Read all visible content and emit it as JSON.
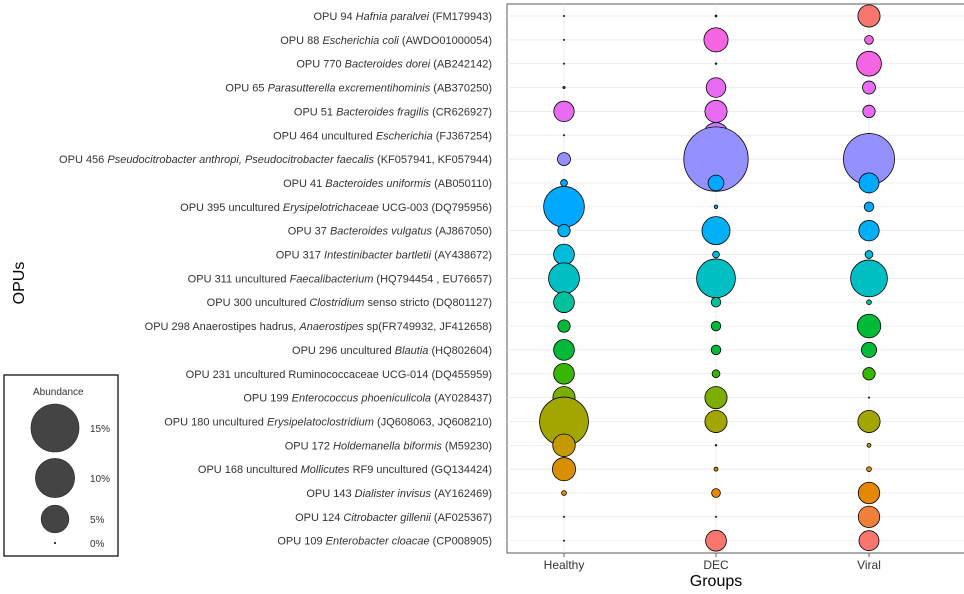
{
  "chart_data": {
    "type": "bubble",
    "xlabel": "Groups",
    "ylabel": "OPUs",
    "groups": [
      "Healthy",
      "DEC",
      "Viral"
    ],
    "legend": {
      "title": "Abundance",
      "entries": [
        {
          "label": "15%",
          "value": 15
        },
        {
          "label": "10%",
          "value": 10
        },
        {
          "label": "5%",
          "value": 5
        },
        {
          "label": "0%",
          "value": 0
        }
      ]
    },
    "rows": [
      {
        "parts": [
          {
            "t": "OPU 94 "
          },
          {
            "t": "Hafnia paralvei",
            "i": true
          },
          {
            "t": " (FM179943)"
          }
        ],
        "color": "#F8766D",
        "values": [
          0.02,
          0.04,
          3.2
        ]
      },
      {
        "parts": [
          {
            "t": "OPU 88 "
          },
          {
            "t": "Escherichia coli",
            "i": true
          },
          {
            "t": " (AWDO01000054)"
          }
        ],
        "color": "#F564E3",
        "values": [
          0.02,
          3.8,
          0.5
        ]
      },
      {
        "parts": [
          {
            "t": "OPU 770 "
          },
          {
            "t": "Bacteroides dorei",
            "i": true
          },
          {
            "t": " (AB242142)"
          }
        ],
        "color": "#F564E3",
        "values": [
          0.02,
          0.03,
          4.0
        ]
      },
      {
        "parts": [
          {
            "t": "OPU 65  "
          },
          {
            "t": "Parasutterella excrementihominis",
            "i": true
          },
          {
            "t": " (AB370250)"
          }
        ],
        "color": "#E76BF3",
        "values": [
          0.05,
          2.5,
          1.1
        ]
      },
      {
        "parts": [
          {
            "t": "OPU 51 "
          },
          {
            "t": "Bacteroides fragilis",
            "i": true
          },
          {
            "t": " (CR626927)"
          }
        ],
        "color": "#E76BF3",
        "values": [
          2.7,
          3.2,
          1.0
        ]
      },
      {
        "parts": [
          {
            "t": "OPU 464 uncultured "
          },
          {
            "t": "Escherichia",
            "i": true
          },
          {
            "t": " (FJ367254)"
          }
        ],
        "color": "#C77CFF",
        "values": [
          0.02,
          4.2,
          0.1
        ]
      },
      {
        "parts": [
          {
            "t": "OPU 456 "
          },
          {
            "t": "Pseudocitrobacter anthropi, Pseudocitrobacter faecalis",
            "i": true
          },
          {
            "t": " (KF057941, KF057944)"
          }
        ],
        "color": "#9590FF",
        "values": [
          1.1,
          27.0,
          17.0
        ]
      },
      {
        "parts": [
          {
            "t": "OPU 41 "
          },
          {
            "t": "Bacteroides uniformis",
            "i": true
          },
          {
            "t": " (AB050110)"
          }
        ],
        "color": "#00A9FF",
        "values": [
          0.3,
          1.6,
          2.6
        ]
      },
      {
        "parts": [
          {
            "t": "OPU 395 uncultured "
          },
          {
            "t": "Erysipelotrichaceae",
            "i": true
          },
          {
            "t": " UCG-003 (DQ795956)"
          }
        ],
        "color": "#00A9FF",
        "values": [
          10.8,
          0.08,
          0.6
        ]
      },
      {
        "parts": [
          {
            "t": "OPU 37 "
          },
          {
            "t": "Bacteroides vulgatus",
            "i": true
          },
          {
            "t": " (AJ867050)"
          }
        ],
        "color": "#00B0F6",
        "values": [
          1.0,
          5.1,
          2.7
        ]
      },
      {
        "parts": [
          {
            "t": "OPU 317 "
          },
          {
            "t": "Intestinibacter bartletii",
            "i": true
          },
          {
            "t": " (AY438672)"
          }
        ],
        "color": "#00BCD8",
        "values": [
          2.8,
          0.3,
          0.4
        ]
      },
      {
        "parts": [
          {
            "t": "OPU 311 uncultured "
          },
          {
            "t": "Faecalibacterium",
            "i": true
          },
          {
            "t": " (HQ794454 , EU76657)"
          }
        ],
        "color": "#00BFC4",
        "values": [
          6.2,
          9.8,
          8.8
        ]
      },
      {
        "parts": [
          {
            "t": "OPU 300 uncultured "
          },
          {
            "t": "Clostridium",
            "i": true
          },
          {
            "t": " senso stricto (DQ801127)"
          }
        ],
        "color": "#00C19A",
        "values": [
          2.8,
          0.6,
          0.15
        ]
      },
      {
        "parts": [
          {
            "t": "OPU 298 Anaerostipes hadrus, "
          },
          {
            "t": "Anaerostipes",
            "i": true
          },
          {
            "t": " sp(FR749932, JF412658)"
          }
        ],
        "color": "#00BA38",
        "values": [
          1.0,
          0.6,
          3.6
        ]
      },
      {
        "parts": [
          {
            "t": "OPU 296 uncultured "
          },
          {
            "t": "Blautia",
            "i": true
          },
          {
            "t": " (HQ802604)"
          }
        ],
        "color": "#00BA38",
        "values": [
          2.8,
          0.6,
          1.5
        ]
      },
      {
        "parts": [
          {
            "t": "OPU 231 uncultured Ruminococcaceae UCG-014 (DQ455959)"
          }
        ],
        "color": "#39B600",
        "values": [
          2.8,
          0.4,
          1.0
        ]
      },
      {
        "parts": [
          {
            "t": "OPU 199 "
          },
          {
            "t": "Enterococcus phoeniculicola",
            "i": true
          },
          {
            "t": " (AY028437)"
          }
        ],
        "color": "#7CAE00",
        "values": [
          3.2,
          3.2,
          0.02
        ]
      },
      {
        "parts": [
          {
            "t": "OPU 180 uncultured "
          },
          {
            "t": "Erysipelatoclostridium",
            "i": true
          },
          {
            "t": " (JQ608063, JQ608210)"
          }
        ],
        "color": "#A3A500",
        "values": [
          15.5,
          3.2,
          3.2
        ]
      },
      {
        "parts": [
          {
            "t": "OPU 172 "
          },
          {
            "t": "Holdemanella biformis",
            "i": true
          },
          {
            "t": " (M59230)"
          }
        ],
        "color": "#C49A00",
        "values": [
          3.3,
          0.03,
          0.1
        ]
      },
      {
        "parts": [
          {
            "t": "OPU 168 uncultured "
          },
          {
            "t": "Mollicutes",
            "i": true
          },
          {
            "t": " RF9 uncultured (GQ134424)"
          }
        ],
        "color": "#D89000",
        "values": [
          3.5,
          0.1,
          0.15
        ]
      },
      {
        "parts": [
          {
            "t": "OPU 143 "
          },
          {
            "t": "Dialister invisus",
            "i": true
          },
          {
            "t": " (AY162469)"
          }
        ],
        "color": "#E58700",
        "values": [
          0.15,
          0.5,
          3.0
        ]
      },
      {
        "parts": [
          {
            "t": "OPU 124 "
          },
          {
            "t": "Citrobacter gillenii",
            "i": true
          },
          {
            "t": " (AF025367)"
          }
        ],
        "color": "#F07F3A",
        "values": [
          0.02,
          0.02,
          3.0
        ]
      },
      {
        "parts": [
          {
            "t": "OPU 109 "
          },
          {
            "t": "Enterobacter cloacae",
            "i": true
          },
          {
            "t": " (CP008905)"
          }
        ],
        "color": "#F8766D",
        "values": [
          0.02,
          2.8,
          2.6
        ]
      }
    ]
  }
}
